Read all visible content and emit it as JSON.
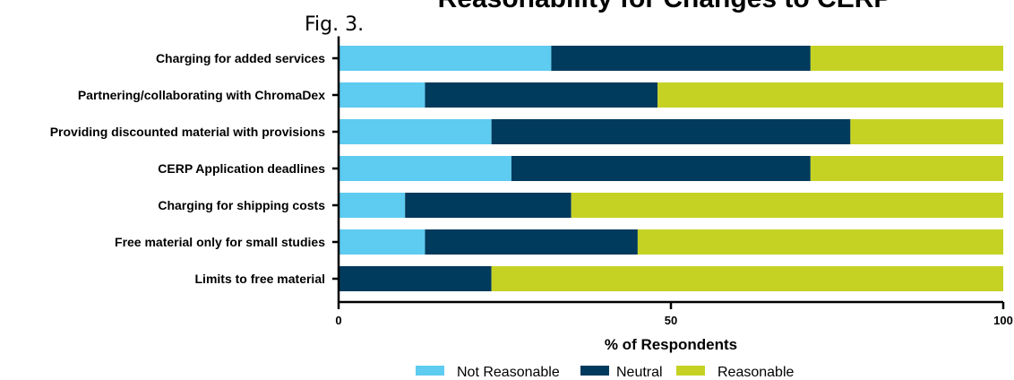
{
  "fig_label": "Fig. 3.",
  "chart_data": {
    "type": "bar",
    "orientation": "horizontal",
    "stacked": true,
    "title": "Reasonability for Changes to CERP",
    "xlabel": "% of Respondents",
    "ylabel": "",
    "xlim": [
      0,
      100
    ],
    "xticks": [
      "0",
      "50",
      "100"
    ],
    "categories": [
      "Charging for added services",
      "Partnering/collaborating with ChromaDex",
      "Providing discounted material with provisions",
      "CERP Application deadlines",
      "Charging for shipping costs",
      "Free material only for small studies",
      "Limits to free material"
    ],
    "series": [
      {
        "name": "Not Reasonable",
        "color": "#5ecbf0",
        "values": [
          32,
          13,
          23,
          26,
          10,
          13,
          0
        ]
      },
      {
        "name": "Neutral",
        "color": "#003a5c",
        "values": [
          39,
          35,
          54,
          45,
          25,
          32,
          23
        ]
      },
      {
        "name": "Reasonable",
        "color": "#c5d224",
        "values": [
          29,
          52,
          23,
          29,
          65,
          55,
          77
        ]
      }
    ],
    "grid": false,
    "legend_position": "bottom"
  }
}
